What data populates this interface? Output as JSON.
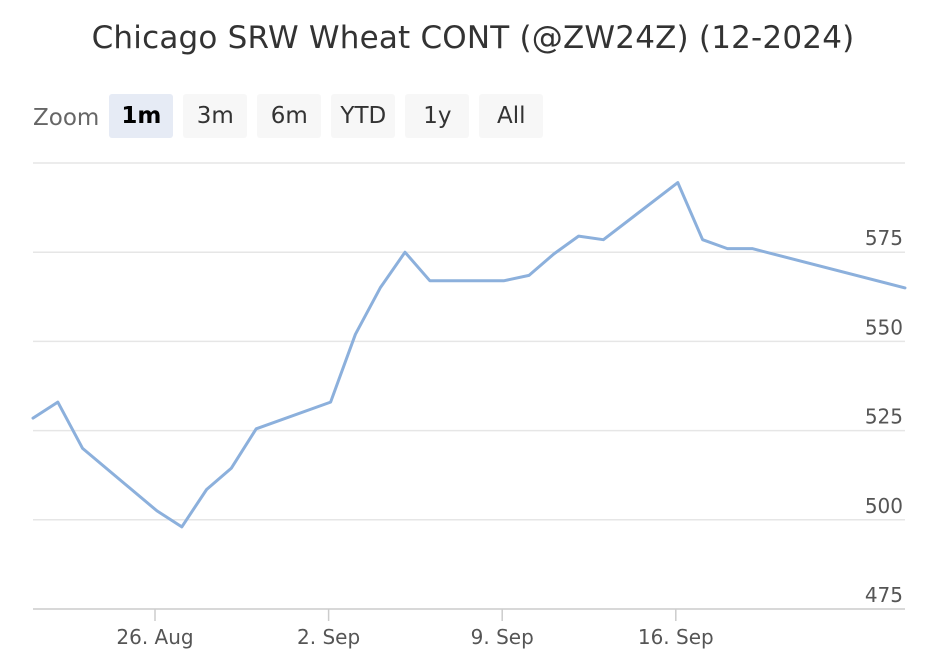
{
  "title": "Chicago SRW Wheat CONT (@ZW24Z) (12-2024)",
  "zoom": {
    "label": "Zoom",
    "buttons": [
      {
        "label": "1m",
        "active": true
      },
      {
        "label": "3m",
        "active": false
      },
      {
        "label": "6m",
        "active": false
      },
      {
        "label": "YTD",
        "active": false
      },
      {
        "label": "1y",
        "active": false
      },
      {
        "label": "All",
        "active": false
      }
    ]
  },
  "colors": {
    "line": "#8cb0dc",
    "grid": "#e6e6e6",
    "axis": "#cccccc"
  },
  "chart_data": {
    "type": "line",
    "title": "Chicago SRW Wheat CONT (@ZW24Z) (12-2024)",
    "xlabel": "",
    "ylabel": "",
    "x_ticks": [
      "26. Aug",
      "2. Sep",
      "9. Sep",
      "16. Sep"
    ],
    "y_ticks": [
      475,
      500,
      525,
      550,
      575
    ],
    "ylim": [
      475,
      600
    ],
    "grid": true,
    "series": [
      {
        "name": "",
        "points": [
          {
            "x": "2024-08-21",
            "y": 528.5
          },
          {
            "x": "2024-08-22",
            "y": 533
          },
          {
            "x": "2024-08-23",
            "y": 520
          },
          {
            "x": "2024-08-26",
            "y": 502.5
          },
          {
            "x": "2024-08-27",
            "y": 498
          },
          {
            "x": "2024-08-28",
            "y": 508.5
          },
          {
            "x": "2024-08-29",
            "y": 514.5
          },
          {
            "x": "2024-08-30",
            "y": 525.5
          },
          {
            "x": "2024-09-02",
            "y": 533
          },
          {
            "x": "2024-09-03",
            "y": 552
          },
          {
            "x": "2024-09-04",
            "y": 565
          },
          {
            "x": "2024-09-05",
            "y": 575
          },
          {
            "x": "2024-09-06",
            "y": 567
          },
          {
            "x": "2024-09-09",
            "y": 567
          },
          {
            "x": "2024-09-10",
            "y": 568.5
          },
          {
            "x": "2024-09-11",
            "y": 574.5
          },
          {
            "x": "2024-09-12",
            "y": 579.5
          },
          {
            "x": "2024-09-13",
            "y": 578.5
          },
          {
            "x": "2024-09-16",
            "y": 594.5
          },
          {
            "x": "2024-09-17",
            "y": 578.5
          },
          {
            "x": "2024-09-18",
            "y": 576
          },
          {
            "x": "2024-09-19",
            "y": 576
          },
          {
            "x": "2024-09-20",
            "y": 565
          }
        ]
      }
    ]
  }
}
